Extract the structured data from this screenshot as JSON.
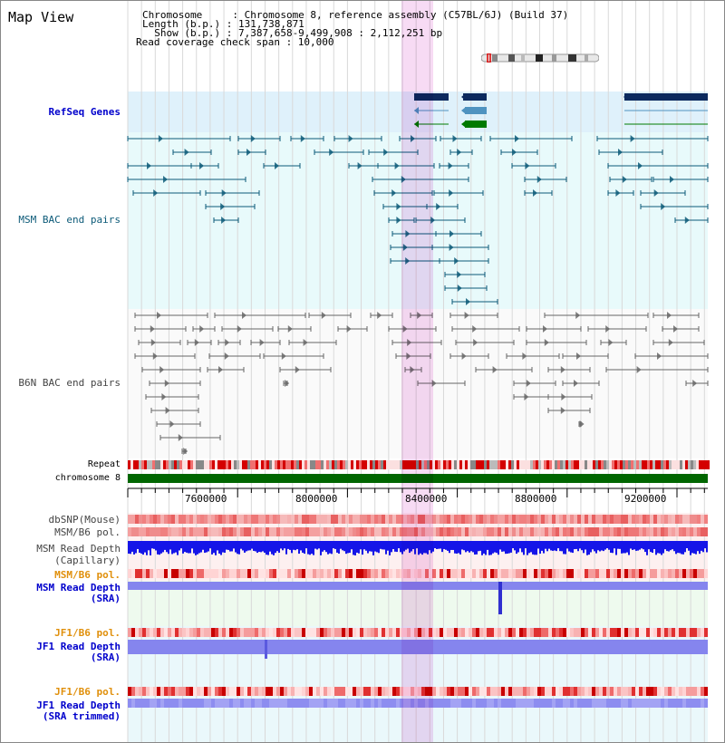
{
  "app": {
    "title": "Map View"
  },
  "info": {
    "chromosome_line": "Chromosome     : Chromosome 8, reference assembly (C57BL/6J) (Build 37)",
    "length_line": "Length (b.p.) : 131,738,871",
    "show_line": "  Show (b.p.) : 7,387,658-9,499,908 : 2,112,251 bp",
    "coverage_line": "Read coverage check span : 10,000"
  },
  "tracks": {
    "refseq": "RefSeq Genes",
    "msm_bac": "MSM BAC end pairs",
    "b6n_bac": "B6N BAC end pairs",
    "repeat": "Repeat",
    "chromosome": "chromosome 8",
    "dbsnp": "dbSNP(Mouse)",
    "msm_b6_pol": "MSM/B6 pol.",
    "msm_depth_cap_1": "MSM Read Depth",
    "msm_depth_cap_2": "(Capillary)",
    "msm_b6_pol_orange": "MSM/B6 pol.",
    "msm_depth_sra_1": "MSM Read Depth",
    "msm_depth_sra_2": "(SRA)",
    "jf1_b6_pol": "JF1/B6 pol.",
    "jf1_depth_sra_1": "JF1 Read Depth",
    "jf1_depth_sra_2": "(SRA)",
    "jf1_b6_pol_2": "JF1/B6 pol.",
    "jf1_depth_trim_1": "JF1 Read Depth",
    "jf1_depth_trim_2": "(SRA trimmed)"
  },
  "axis": {
    "ticks": [
      "7600000",
      "8000000",
      "8400000",
      "8800000",
      "9200000"
    ]
  },
  "colors": {
    "label_blue": "#0000cc",
    "label_teal": "#0c5a78",
    "label_gray": "#444444",
    "label_orange": "#e0900c",
    "refseq_bg": "#dff1fb",
    "bac_bg": "#e8fafb",
    "highlight": "#f7d8f3",
    "gene_dark": "#0c2a5e",
    "gene_mid": "#4f93c0",
    "gene_green": "#007a00",
    "chromosome_bar": "#006600",
    "depth_blue": "#1515e8",
    "depth_light": "#8585ee"
  },
  "icons": [
    "chromosome-ideogram-icon"
  ]
}
